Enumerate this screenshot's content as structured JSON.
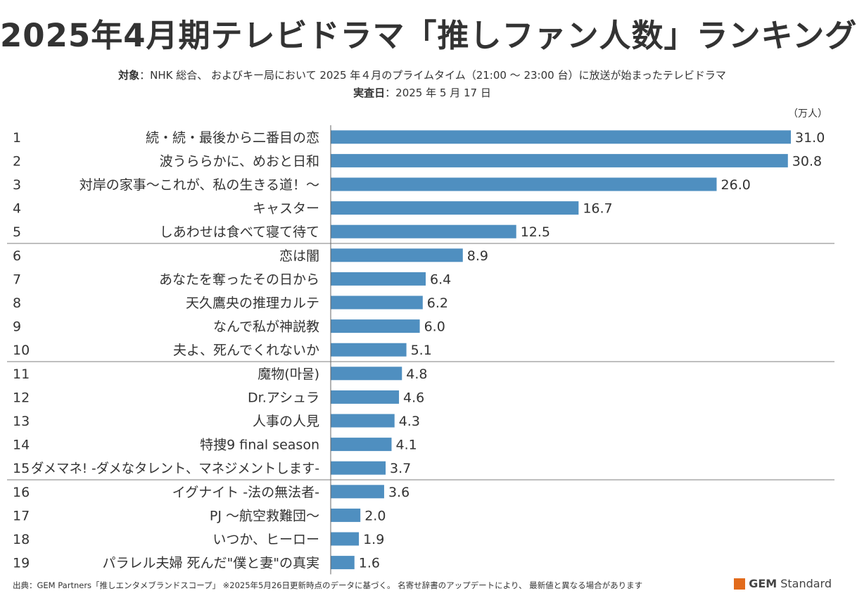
{
  "title": "2025年4月期テレビドラマ「推しファン人数」ランキング",
  "subtitle": {
    "target_label": "対象",
    "target_text": "：NHK 総合、 およびキー局において 2025 年４月のプライムタイム（21:00 ～ 23:00 台）に放送が始まったテレビドラマ",
    "date_label": "実査日",
    "date_text": "：2025 年 5 月 17 日"
  },
  "chart_data": {
    "type": "bar",
    "orientation": "horizontal",
    "unit_label": "（万人）",
    "ranks": [
      "1",
      "2",
      "3",
      "4",
      "5",
      "6",
      "7",
      "8",
      "9",
      "10",
      "11",
      "12",
      "13",
      "14",
      "15",
      "16",
      "17",
      "18",
      "19"
    ],
    "categories": [
      "続・続・最後から二番目の恋",
      "波うららかに、めおと日和",
      "対岸の家事～これが、私の生きる道！～",
      "キャスター",
      "しあわせは食べて寝て待て",
      "恋は闇",
      "あなたを奪ったその日から",
      "天久鷹央の推理カルテ",
      "なんで私が神説教",
      "夫よ、死んでくれないか",
      "魔物(마물)",
      "Dr.アシュラ",
      "人事の人見",
      "特捜9 final season",
      "ダメマネ! -ダメなタレント、マネジメントします-",
      "イグナイト -法の無法者-",
      "PJ ～航空救難団～",
      "いつか、ヒーロー",
      "パラレル夫婦 死んだ\"僕と妻\"の真実"
    ],
    "values": [
      31.0,
      30.8,
      26.0,
      16.7,
      12.5,
      8.9,
      6.4,
      6.2,
      6.0,
      5.1,
      4.8,
      4.6,
      4.3,
      4.1,
      3.7,
      3.6,
      2.0,
      1.9,
      1.6
    ],
    "value_labels": [
      "31.0",
      "30.8",
      "26.0",
      "16.7",
      "12.5",
      "8.9",
      "6.4",
      "6.2",
      "6.0",
      "5.1",
      "4.8",
      "4.6",
      "4.3",
      "4.1",
      "3.7",
      "3.6",
      "2.0",
      "1.9",
      "1.6"
    ],
    "xlim": [
      0,
      31.0
    ],
    "bar_color": "#4f8fc0",
    "group_separator_color": "#999999"
  },
  "footer": "出典：GEM Partners「推しエンタメブランドスコープ」 ※2025年5月26日更新時点のデータに基づく。 名寄せ辞書のアップデートにより、 最新値と異なる場合があります",
  "logo": {
    "gem": "GEM",
    "standard": "Standard",
    "mark_color": "#e26b1c"
  }
}
